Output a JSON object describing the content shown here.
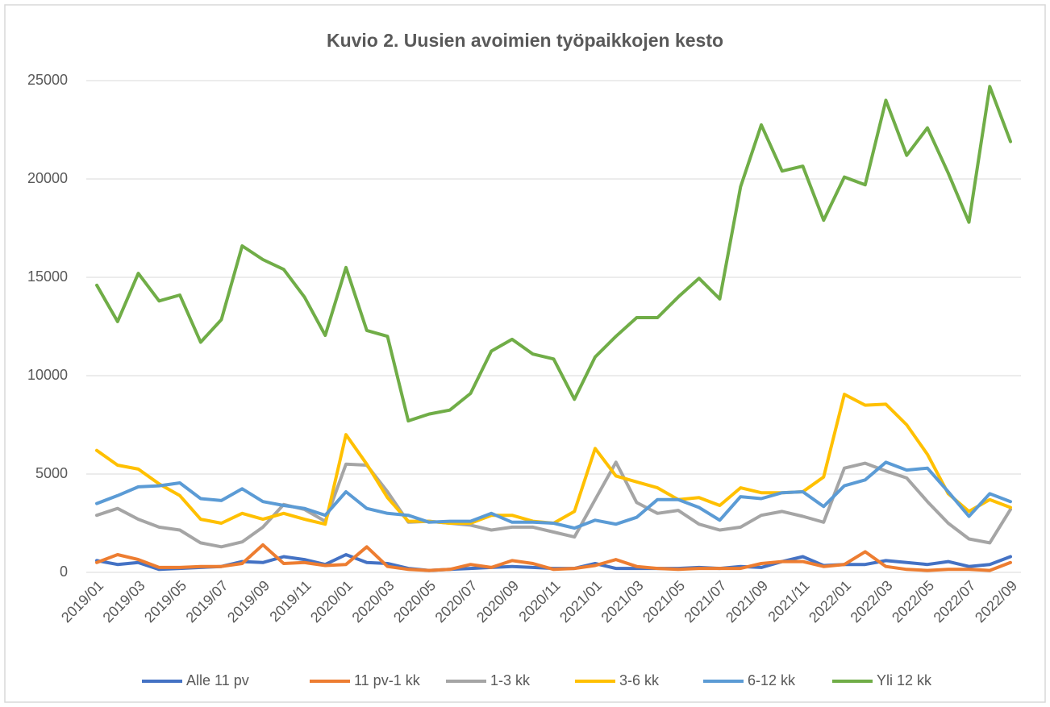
{
  "chart_data": {
    "type": "line",
    "title": "Kuvio 2. Uusien avoimien työpaikkojen kesto",
    "categories": [
      "2019/01",
      null,
      "2019/03",
      null,
      "2019/05",
      null,
      "2019/07",
      null,
      "2019/09",
      null,
      "2019/11",
      null,
      "2020/01",
      null,
      "2020/03",
      null,
      "2020/05",
      null,
      "2020/07",
      null,
      "2020/09",
      null,
      "2020/11",
      null,
      "2021/01",
      null,
      "2021/03",
      null,
      "2021/05",
      null,
      "2021/07",
      null,
      "2021/09",
      null,
      "2021/11",
      null,
      "2022/01",
      null,
      "2022/03",
      null,
      "2022/05",
      null,
      "2022/07",
      null,
      "2022/09"
    ],
    "series": [
      {
        "name": "Alle 11 pv",
        "color": "#4472c4",
        "values": [
          600,
          400,
          500,
          150,
          200,
          250,
          300,
          550,
          500,
          800,
          650,
          400,
          900,
          500,
          450,
          200,
          100,
          150,
          200,
          250,
          300,
          250,
          200,
          200,
          450,
          200,
          200,
          200,
          200,
          250,
          200,
          300,
          250,
          550,
          800,
          350,
          400,
          400,
          600,
          500,
          400,
          550,
          300,
          400,
          800
        ]
      },
      {
        "name": "11 pv-1 kk",
        "color": "#ed7d31",
        "values": [
          500,
          900,
          650,
          250,
          250,
          300,
          300,
          450,
          1400,
          450,
          500,
          350,
          400,
          1300,
          300,
          150,
          100,
          150,
          400,
          250,
          600,
          450,
          150,
          200,
          350,
          650,
          300,
          200,
          150,
          200,
          200,
          200,
          450,
          550,
          550,
          300,
          400,
          1050,
          300,
          150,
          100,
          150,
          150,
          100,
          500
        ]
      },
      {
        "name": "1-3 kk",
        "color": "#a5a5a5",
        "values": [
          2900,
          3250,
          2700,
          2300,
          2150,
          1500,
          1300,
          1550,
          2300,
          3450,
          3200,
          2600,
          5500,
          5450,
          4100,
          2550,
          2600,
          2500,
          2400,
          2150,
          2300,
          2300,
          2050,
          1800,
          3700,
          5600,
          3550,
          3000,
          3150,
          2450,
          2150,
          2300,
          2900,
          3100,
          2850,
          2550,
          5300,
          5550,
          5150,
          4800,
          3600,
          2500,
          1700,
          1500,
          3200
        ]
      },
      {
        "name": "3-6 kk",
        "color": "#ffc000",
        "values": [
          6200,
          5450,
          5250,
          4500,
          3900,
          2700,
          2500,
          3000,
          2700,
          3000,
          2700,
          2450,
          7000,
          5500,
          3800,
          2600,
          2600,
          2500,
          2500,
          2900,
          2900,
          2600,
          2500,
          3100,
          6300,
          4900,
          4600,
          4300,
          3700,
          3800,
          3400,
          4300,
          4050,
          4050,
          4100,
          4850,
          9050,
          8500,
          8550,
          7500,
          6000,
          4000,
          3100,
          3700,
          3300
        ]
      },
      {
        "name": "6-12 kk",
        "color": "#5b9bd5",
        "values": [
          3500,
          3900,
          4350,
          4400,
          4550,
          3750,
          3650,
          4250,
          3600,
          3400,
          3250,
          2900,
          4100,
          3250,
          3000,
          2900,
          2550,
          2600,
          2600,
          3000,
          2550,
          2550,
          2500,
          2250,
          2650,
          2450,
          2800,
          3700,
          3700,
          3300,
          2650,
          3850,
          3750,
          4050,
          4100,
          3350,
          4400,
          4700,
          5600,
          5200,
          5300,
          4100,
          2850,
          4000,
          3600
        ]
      },
      {
        "name": "Yli 12 kk",
        "color": "#70ad47",
        "values": [
          14600,
          12750,
          15200,
          13800,
          14100,
          11700,
          12850,
          16600,
          15900,
          15400,
          14000,
          12050,
          15500,
          12300,
          12000,
          7700,
          8050,
          8250,
          9100,
          11250,
          11850,
          11100,
          10850,
          8800,
          10950,
          12000,
          12950,
          12950,
          14000,
          14950,
          13900,
          19600,
          22750,
          20400,
          20650,
          17900,
          20100,
          19700,
          24000,
          21200,
          22600,
          20300,
          17800,
          24700,
          21900
        ]
      }
    ],
    "ylim": [
      0,
      25000
    ],
    "yticks": [
      0,
      5000,
      10000,
      15000,
      20000,
      25000
    ],
    "grid": true,
    "legend": "bottom"
  }
}
